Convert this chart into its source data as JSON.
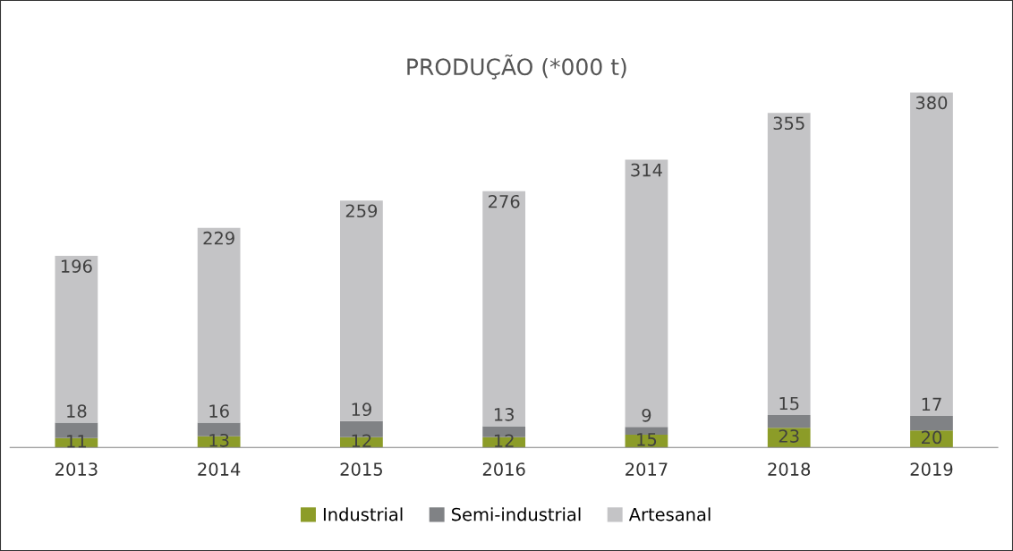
{
  "chart_data": {
    "type": "bar",
    "title": "PRODUÇÃO (*000 t)",
    "stacked": true,
    "data_labels": true,
    "legend": "bottom",
    "grid": false,
    "categories": [
      "2013",
      "2014",
      "2015",
      "2016",
      "2017",
      "2018",
      "2019"
    ],
    "series": [
      {
        "name": "Industrial",
        "color": "#8c9c28",
        "values": [
          11,
          13,
          12,
          12,
          15,
          23,
          20
        ]
      },
      {
        "name": "Semi-industrial",
        "color": "#808285",
        "values": [
          18,
          16,
          19,
          13,
          9,
          15,
          17
        ]
      },
      {
        "name": "Artesanal",
        "color": "#c4c4c6",
        "values": [
          196,
          229,
          259,
          276,
          314,
          355,
          380
        ]
      }
    ]
  }
}
